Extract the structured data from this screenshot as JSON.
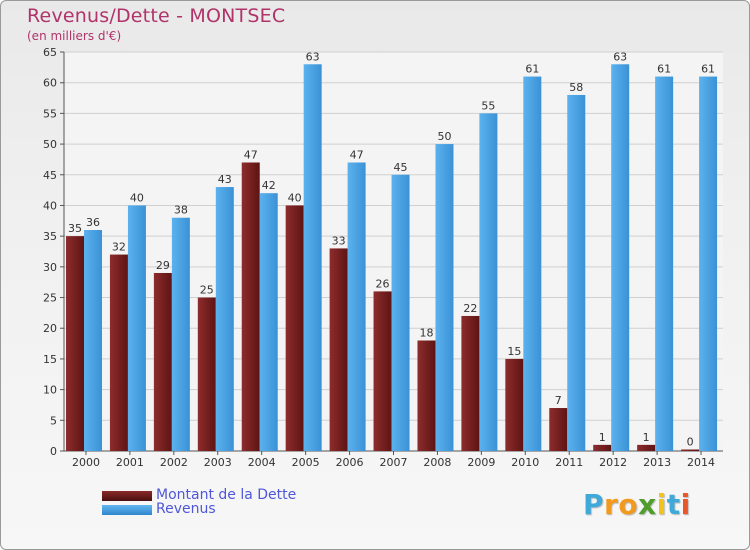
{
  "chart_data": {
    "type": "bar",
    "title": "Revenus/Dette - MONTSEC",
    "subtitle": "(en milliers d'€)",
    "categories": [
      "2000",
      "2001",
      "2002",
      "2003",
      "2004",
      "2005",
      "2006",
      "2007",
      "2008",
      "2009",
      "2010",
      "2011",
      "2012",
      "2013",
      "2014"
    ],
    "series": [
      {
        "name": "Montant de la Dette",
        "color": "#7a1f1f",
        "values": [
          35,
          32,
          29,
          25,
          47,
          40,
          33,
          26,
          18,
          22,
          15,
          7,
          1,
          1,
          0
        ]
      },
      {
        "name": "Revenus",
        "color": "#4aa3e6",
        "values": [
          36,
          40,
          38,
          43,
          42,
          63,
          47,
          45,
          50,
          55,
          61,
          58,
          63,
          61,
          61
        ]
      }
    ],
    "ylim": [
      0,
      65
    ],
    "yticks": [
      0,
      5,
      10,
      15,
      20,
      25,
      30,
      35,
      40,
      45,
      50,
      55,
      60,
      65
    ],
    "grid": true,
    "legend": "bottom-left"
  },
  "logo": {
    "letters": [
      "P",
      "r",
      "o",
      "x",
      "i",
      "t",
      "i"
    ],
    "colors": [
      "#3fa9d9",
      "#f29a1d",
      "#f29a1d",
      "#4e9d2d",
      "#f2c21d",
      "#3fa9d9",
      "#e8562a"
    ]
  }
}
